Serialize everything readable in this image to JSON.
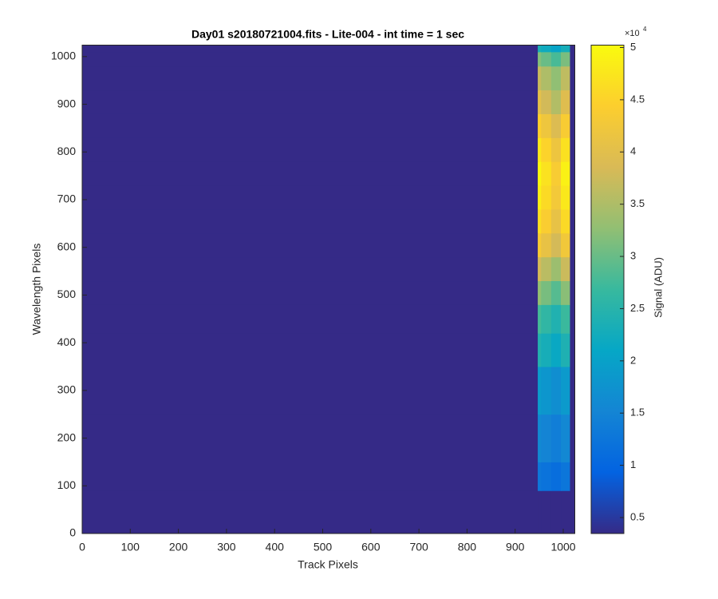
{
  "chart_data": {
    "type": "heatmap",
    "title": "Day01  s20180721004.fits - Lite-004 - int time = 1 sec",
    "xlabel": "Track Pixels",
    "ylabel": "Wavelength Pixels",
    "colorbar_label": "Signal (ADU)",
    "colorbar_multiplier": {
      "base": "×10",
      "exponent": "4"
    },
    "xlim": [
      0,
      1024
    ],
    "ylim": [
      0,
      1024
    ],
    "xticks": [
      0,
      100,
      200,
      300,
      400,
      500,
      600,
      700,
      800,
      900,
      1000
    ],
    "yticks": [
      0,
      100,
      200,
      300,
      400,
      500,
      600,
      700,
      800,
      900,
      1000
    ],
    "clim": [
      3470,
      50230
    ],
    "cticks": [
      {
        "value": 5000,
        "label": "0.5"
      },
      {
        "value": 10000,
        "label": "1"
      },
      {
        "value": 15000,
        "label": "1.5"
      },
      {
        "value": 20000,
        "label": "2"
      },
      {
        "value": 25000,
        "label": "2.5"
      },
      {
        "value": 30000,
        "label": "3"
      },
      {
        "value": 35000,
        "label": "3.5"
      },
      {
        "value": 40000,
        "label": "4"
      },
      {
        "value": 45000,
        "label": "4.5"
      },
      {
        "value": 50000,
        "label": "5"
      }
    ],
    "colormap": [
      "#352a87",
      "#0363e1",
      "#1485d4",
      "#06a7c6",
      "#38b99e",
      "#92bf73",
      "#d9ba56",
      "#fcce2e",
      "#f9fb0e"
    ],
    "x_edges": [
      0,
      947,
      954,
      975,
      995,
      1014,
      1024
    ],
    "y_edges": [
      0,
      90,
      150,
      250,
      350,
      420,
      480,
      530,
      580,
      630,
      680,
      730,
      780,
      830,
      880,
      930,
      980,
      1010,
      1024
    ],
    "z": [
      [
        3500,
        3500,
        3500,
        3500,
        3500,
        3500
      ],
      [
        3500,
        12700,
        12000,
        11200,
        12500,
        3500
      ],
      [
        3500,
        15900,
        15000,
        14000,
        15600,
        3500
      ],
      [
        3500,
        19100,
        18000,
        16700,
        18700,
        3500
      ],
      [
        3500,
        24400,
        23000,
        21400,
        23900,
        3500
      ],
      [
        3500,
        27600,
        26000,
        24200,
        27000,
        3500
      ],
      [
        3500,
        32900,
        31000,
        28800,
        32200,
        3500
      ],
      [
        3500,
        38200,
        36000,
        33500,
        37400,
        3500
      ],
      [
        3500,
        43500,
        41000,
        38100,
        42600,
        3500
      ],
      [
        3500,
        46600,
        44000,
        40900,
        45800,
        3500
      ],
      [
        3500,
        48800,
        46000,
        42800,
        47800,
        3500
      ],
      [
        3500,
        49800,
        47000,
        43700,
        48900,
        3500
      ],
      [
        3500,
        47700,
        45000,
        41900,
        46800,
        3500
      ],
      [
        3500,
        44500,
        42000,
        39100,
        43700,
        3500
      ],
      [
        3500,
        40300,
        38000,
        35300,
        39500,
        3500
      ],
      [
        3500,
        37100,
        35000,
        32600,
        36400,
        3500
      ],
      [
        3500,
        31800,
        30000,
        27900,
        31200,
        3500
      ],
      [
        3500,
        23300,
        22000,
        20500,
        22900,
        3500
      ]
    ]
  }
}
